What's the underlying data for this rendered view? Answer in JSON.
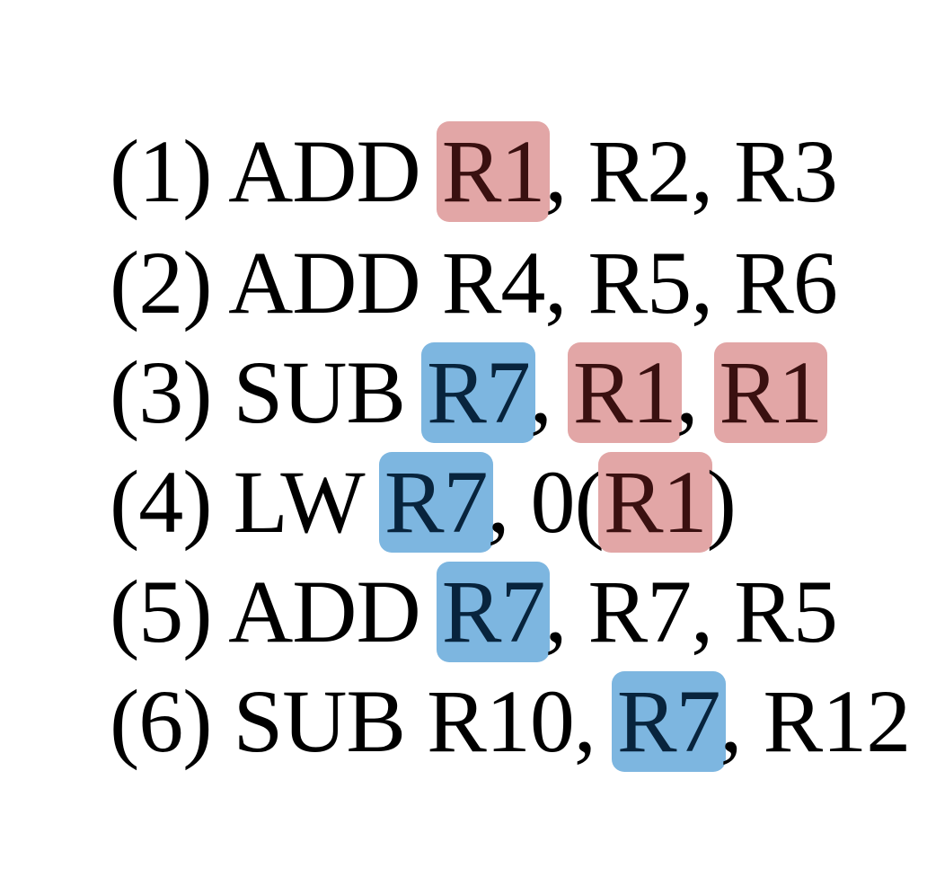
{
  "colors": {
    "red_highlight": "#e2a6a6",
    "blue_highlight": "#7db6e0"
  },
  "lines": [
    {
      "tokens": [
        {
          "text": "(1) ADD ",
          "hl": ""
        },
        {
          "text": "R1",
          "hl": "red"
        },
        {
          "text": ", R2, R3",
          "hl": ""
        }
      ]
    },
    {
      "tokens": [
        {
          "text": "(2) ADD R4, R5, R6",
          "hl": ""
        }
      ]
    },
    {
      "tokens": [
        {
          "text": "(3) SUB ",
          "hl": ""
        },
        {
          "text": "R7",
          "hl": "blue"
        },
        {
          "text": ", ",
          "hl": ""
        },
        {
          "text": "R1",
          "hl": "red"
        },
        {
          "text": ", ",
          "hl": ""
        },
        {
          "text": "R1",
          "hl": "red"
        }
      ]
    },
    {
      "tokens": [
        {
          "text": "(4) LW ",
          "hl": ""
        },
        {
          "text": "R7",
          "hl": "blue"
        },
        {
          "text": ", 0(",
          "hl": ""
        },
        {
          "text": "R1",
          "hl": "red"
        },
        {
          "text": ")",
          "hl": ""
        }
      ]
    },
    {
      "tokens": [
        {
          "text": "(5) ADD ",
          "hl": ""
        },
        {
          "text": "R7",
          "hl": "blue"
        },
        {
          "text": ", R7, R5",
          "hl": ""
        }
      ]
    },
    {
      "tokens": [
        {
          "text": "(6) SUB R10, ",
          "hl": ""
        },
        {
          "text": "R7",
          "hl": "blue"
        },
        {
          "text": ", R12",
          "hl": ""
        }
      ]
    }
  ]
}
